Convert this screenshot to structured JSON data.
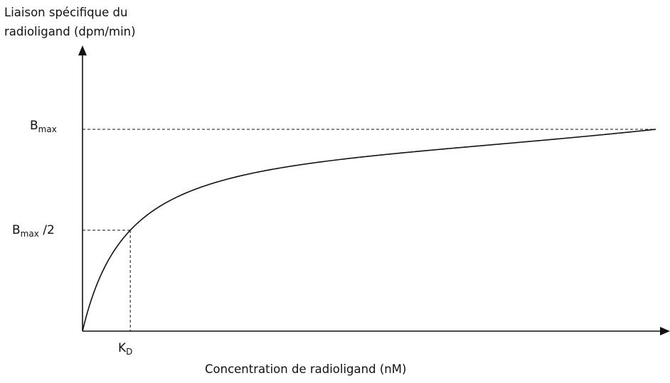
{
  "chart_data": {
    "type": "line",
    "ylabel_line1": "Liaison spécifique du",
    "ylabel_line2": "radioligand (dpm/min)",
    "xlabel": "Concentration de radioligand (nM)",
    "ticks": {
      "bmax": {
        "base": "B",
        "sub": "max",
        "suffix": ""
      },
      "bmax_half": {
        "base": "B",
        "sub": "max",
        "suffix": " /2"
      },
      "kd": {
        "base": "K",
        "sub": "D"
      }
    },
    "model": "saturation binding: y = Bmax·x/(KD + x)",
    "params": {
      "Bmax": 1,
      "KD": 1
    },
    "xlim": [
      0,
      12
    ],
    "ylim": [
      0,
      1.0
    ],
    "curve_color": "#111111",
    "reference_lines": [
      {
        "label": "Bmax",
        "y": 1,
        "style": "dashed"
      },
      {
        "label": "Bmax /2",
        "y": 0.5,
        "x": 1,
        "style": "dashed"
      }
    ]
  }
}
